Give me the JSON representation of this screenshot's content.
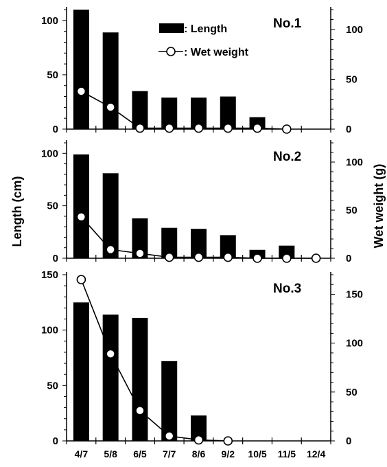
{
  "chart_data": {
    "type": "bar+line",
    "categories": [
      "4/7",
      "5/8",
      "6/5",
      "7/7",
      "8/6",
      "9/2",
      "10/5",
      "11/5",
      "12/4"
    ],
    "ylabel_left": "Length (cm)",
    "ylabel_right": "Wet weight (g)",
    "legend": {
      "placement": "top-center",
      "bar_label": ": Length",
      "line_label": ": Wet weight"
    },
    "colors": {
      "bar": "#000000",
      "line": "#000000",
      "marker_fill": "#ffffff"
    },
    "panels": [
      {
        "label": "No.1",
        "left_ylim": [
          0,
          110
        ],
        "left_ticks": [
          "0",
          "50",
          "100"
        ],
        "right_ylim": [
          0,
          120
        ],
        "right_ticks": [
          "0",
          "50",
          "100"
        ],
        "length": [
          110,
          89,
          35,
          29,
          29,
          30,
          11,
          null,
          null
        ],
        "wet_weight": [
          38,
          22,
          1,
          1,
          1,
          1,
          1,
          0,
          null
        ]
      },
      {
        "label": "No.2",
        "left_ylim": [
          0,
          110
        ],
        "left_ticks": [
          "0",
          "50",
          "100"
        ],
        "right_ylim": [
          0,
          120
        ],
        "right_ticks": [
          "0",
          "50",
          "100"
        ],
        "length": [
          99,
          81,
          38,
          29,
          28,
          22,
          8,
          12,
          null
        ],
        "wet_weight": [
          43,
          9,
          5,
          1,
          1,
          1,
          0,
          0,
          0
        ]
      },
      {
        "label": "No.3",
        "left_ylim": [
          0,
          150
        ],
        "left_ticks": [
          "0",
          "50",
          "100",
          "150"
        ],
        "right_ylim": [
          0,
          170
        ],
        "right_ticks": [
          "0",
          "50",
          "100",
          "150"
        ],
        "length": [
          125,
          114,
          111,
          72,
          23,
          null,
          null,
          null,
          null
        ],
        "wet_weight": [
          165,
          89,
          31,
          5,
          1,
          0,
          null,
          null,
          null
        ]
      }
    ]
  }
}
